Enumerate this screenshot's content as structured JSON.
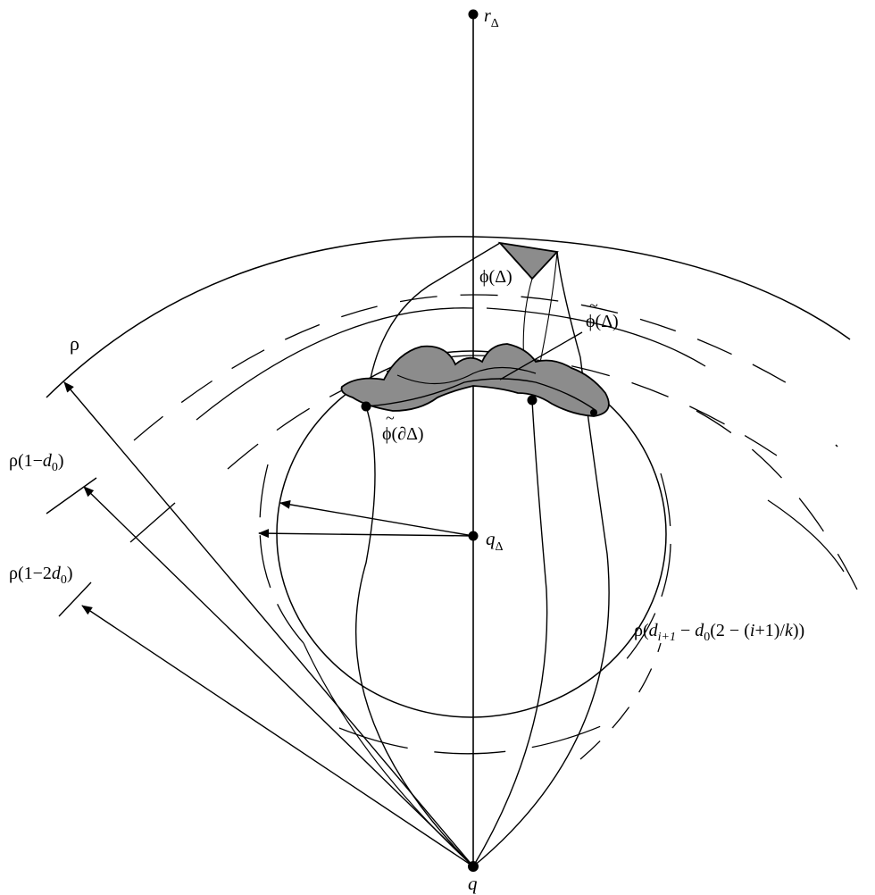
{
  "labels": {
    "r_delta": {
      "main": "r",
      "sub": "Δ"
    },
    "phi_delta": "ϕ(Δ)",
    "phi_tilde_delta": {
      "tilde": "~",
      "text": "ϕ(Δ)"
    },
    "phi_tilde_boundary": {
      "tilde": "~",
      "text": "ϕ(∂Δ)"
    },
    "rho": "ρ",
    "rho_1_d0": {
      "pre": "ρ(1−",
      "var": "d",
      "sub": "0",
      "post": ")"
    },
    "rho_1_2d0": {
      "pre": "ρ(1−2",
      "var": "d",
      "sub": "0",
      "post": ")"
    },
    "q_delta": {
      "main": "q",
      "sub": "Δ"
    },
    "q": "q",
    "rho_d_formula": {
      "pre": "ρ(",
      "var1": "d",
      "sub1": "i+1",
      "mid": " − ",
      "var2": "d",
      "sub2": "0",
      "post_a": "(2 − (",
      "i": "i",
      "post_b": "+1)/",
      "k": "k",
      "post_c": "))"
    }
  },
  "colors": {
    "ink": "#000000",
    "shade": "#8c8c8c",
    "background": "#ffffff"
  }
}
